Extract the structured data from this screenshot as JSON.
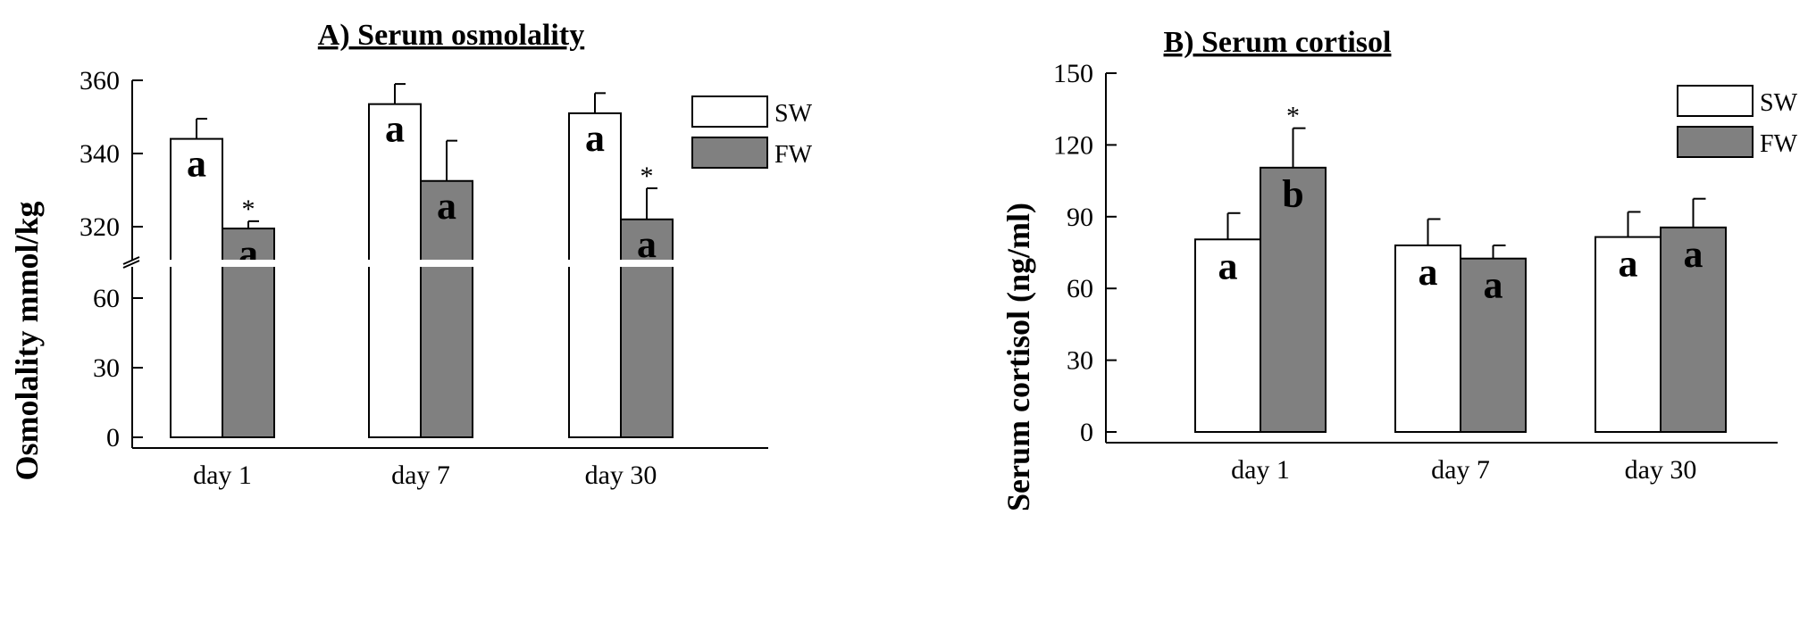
{
  "colors": {
    "sw": "#ffffff",
    "fw": "#808080"
  },
  "chart_data": [
    {
      "type": "bar",
      "title": "A) Serum osmolality",
      "ylabel": "Osmolality mmol/kg",
      "xlabel": "",
      "categories": [
        "day 1",
        "day 7",
        "day 30"
      ],
      "axis_break": {
        "lower": [
          0,
          75
        ],
        "upper": [
          310,
          360
        ]
      },
      "yticks_lower": [
        0,
        30,
        60
      ],
      "yticks_upper": [
        320,
        340,
        360
      ],
      "ytick_labels_lower": [
        "0",
        "30",
        "60"
      ],
      "ytick_labels_upper": [
        "320",
        "340",
        "360"
      ],
      "legend": [
        "SW",
        "FW"
      ],
      "legend_position": "top-right",
      "series": [
        {
          "name": "SW",
          "values": [
            344,
            353.5,
            351
          ],
          "errors": [
            5.5,
            5.5,
            5.5
          ],
          "letters": [
            "a",
            "a",
            "a"
          ],
          "stars": [
            "",
            "",
            ""
          ]
        },
        {
          "name": "FW",
          "values": [
            319.5,
            332.5,
            322
          ],
          "errors": [
            2,
            11,
            8.5
          ],
          "letters": [
            "a",
            "a",
            "a"
          ],
          "stars": [
            "*",
            "",
            "*"
          ]
        }
      ]
    },
    {
      "type": "bar",
      "title": "B) Serum cortisol",
      "ylabel": "Serum cortisol (ng/ml)",
      "xlabel": "",
      "categories": [
        "day 1",
        "day 7",
        "day 30"
      ],
      "ylim": [
        0,
        150
      ],
      "yticks": [
        0,
        30,
        60,
        90,
        120,
        150
      ],
      "ytick_labels": [
        "0",
        "30",
        "60",
        "90",
        "120",
        "150"
      ],
      "legend": [
        "SW",
        "FW"
      ],
      "legend_position": "top-right",
      "series": [
        {
          "name": "SW",
          "values": [
            80.5,
            78,
            81.5
          ],
          "errors": [
            11,
            11,
            10.5
          ],
          "letters": [
            "a",
            "a",
            "a"
          ],
          "stars": [
            "",
            "",
            ""
          ]
        },
        {
          "name": "FW",
          "values": [
            110.5,
            72.5,
            85.5
          ],
          "errors": [
            16.5,
            5.5,
            12
          ],
          "letters": [
            "b",
            "a",
            "a"
          ],
          "stars": [
            "*",
            "",
            ""
          ]
        }
      ]
    }
  ]
}
